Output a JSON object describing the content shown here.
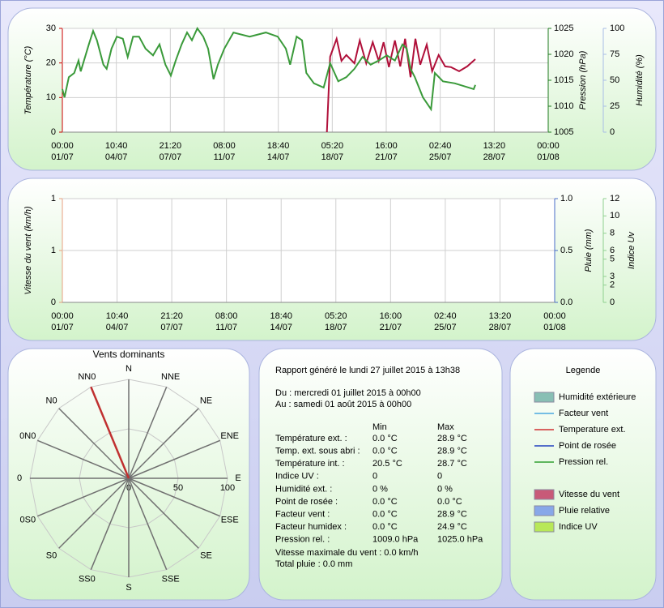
{
  "chart_data": [
    {
      "type": "line",
      "ylabel": "Température (°C)",
      "y2label": "Pression (hPa)",
      "y3label": "Humidité (%)",
      "xlim": [
        0,
        9
      ],
      "xticks": [
        {
          "value": 0,
          "label": "00:00\n01/07"
        },
        {
          "value": 1,
          "label": "10:40\n04/07"
        },
        {
          "value": 2,
          "label": "21:20\n07/07"
        },
        {
          "value": 3,
          "label": "08:00\n11/07"
        },
        {
          "value": 4,
          "label": "18:40\n14/07"
        },
        {
          "value": 5,
          "label": "05:20\n18/07"
        },
        {
          "value": 6,
          "label": "16:00\n21/07"
        },
        {
          "value": 7,
          "label": "02:40\n25/07"
        },
        {
          "value": 8,
          "label": "13:20\n28/07"
        },
        {
          "value": 9,
          "label": "00:00\n01/08"
        }
      ],
      "ylim": [
        0,
        30
      ],
      "yticks": [
        0,
        10,
        20,
        30
      ],
      "ycolor": "#cc0000",
      "y2lim": [
        1005,
        1025
      ],
      "y2ticks": [
        1005,
        1010,
        1015,
        1020,
        1025
      ],
      "y2color": "#1f7a1f",
      "y3lim": [
        0,
        100
      ],
      "y3ticks": [
        0,
        25,
        50,
        75,
        100
      ],
      "y3color": "#a8bde6",
      "grid": true,
      "series": [
        {
          "color": "#b0103a",
          "axis": "y",
          "x": [
            4.9,
            4.96,
            5.08,
            5.17,
            5.26,
            5.41,
            5.51,
            5.63,
            5.75,
            5.86,
            5.95,
            6.05,
            6.16,
            6.26,
            6.35,
            6.45,
            6.54,
            6.63,
            6.75,
            6.85,
            6.97,
            7.09,
            7.2,
            7.35,
            7.5,
            7.65
          ],
          "values": [
            0,
            21.8,
            27,
            20.6,
            22.3,
            19.9,
            26.5,
            19.9,
            26,
            20.6,
            26,
            18.8,
            26.5,
            19,
            27,
            15.9,
            27,
            19.5,
            25.3,
            17.6,
            22.3,
            19,
            18.8,
            17.6,
            19,
            21.1
          ]
        },
        {
          "color": "#3a9a3a",
          "axis": "y2",
          "x": [
            0,
            0.04,
            0.12,
            0.22,
            0.3,
            0.34,
            0.49,
            0.57,
            0.64,
            0.76,
            0.82,
            0.91,
            1.01,
            1.12,
            1.21,
            1.31,
            1.42,
            1.54,
            1.68,
            1.8,
            1.91,
            2.01,
            2.1,
            2.21,
            2.31,
            2.4,
            2.5,
            2.61,
            2.7,
            2.8,
            2.88,
            3.0,
            3.17,
            3.47,
            3.77,
            3.99,
            4.14,
            4.22,
            4.34,
            4.44,
            4.52,
            4.66,
            4.84,
            4.96,
            5.11,
            5.26,
            5.41,
            5.56,
            5.71,
            5.86,
            6.01,
            6.16,
            6.3,
            6.38,
            6.45,
            6.53,
            6.68,
            6.83,
            6.9,
            7.05,
            7.27,
            7.62,
            7.65
          ],
          "values": [
            1013.3,
            1011.7,
            1015.6,
            1016.4,
            1018.8,
            1016.7,
            1021.9,
            1024.5,
            1022.7,
            1018.0,
            1017.2,
            1021.1,
            1023.4,
            1023.0,
            1019.5,
            1023.4,
            1023.4,
            1021.1,
            1019.8,
            1021.9,
            1018.0,
            1015.9,
            1018.8,
            1021.9,
            1024.2,
            1022.7,
            1025.0,
            1023.4,
            1021.1,
            1015.2,
            1018.0,
            1021.1,
            1024.2,
            1023.4,
            1024.2,
            1023.4,
            1021.1,
            1018.0,
            1023.4,
            1022.7,
            1016.4,
            1014.4,
            1013.6,
            1018.3,
            1014.8,
            1015.6,
            1017.2,
            1019.5,
            1018.0,
            1018.8,
            1019.8,
            1018.8,
            1021.9,
            1021.1,
            1017.2,
            1015.6,
            1011.7,
            1009.4,
            1016.4,
            1014.8,
            1014.4,
            1013.3,
            1014.1
          ]
        }
      ]
    },
    {
      "type": "line",
      "ylabel": "Vitesse du vent (km/h)",
      "y2label": "Pluie (mm)",
      "y3label": "Indice Uv",
      "xlim": [
        0,
        9
      ],
      "xticks": [
        {
          "value": 0,
          "label": "00:00\n01/07"
        },
        {
          "value": 1,
          "label": "10:40\n04/07"
        },
        {
          "value": 2,
          "label": "21:20\n07/07"
        },
        {
          "value": 3,
          "label": "08:00\n11/07"
        },
        {
          "value": 4,
          "label": "18:40\n14/07"
        },
        {
          "value": 5,
          "label": "05:20\n18/07"
        },
        {
          "value": 6,
          "label": "16:00\n21/07"
        },
        {
          "value": 7,
          "label": "02:40\n25/07"
        },
        {
          "value": 8,
          "label": "13:20\n28/07"
        },
        {
          "value": 9,
          "label": "00:00\n01/08"
        }
      ],
      "ylim": [
        0,
        1
      ],
      "yticks": [
        0,
        {
          "value": 0.5,
          "label": "1"
        },
        1
      ],
      "ycolor": "#e8a080",
      "y2lim": [
        0,
        1
      ],
      "y2ticks": [
        {
          "value": 0,
          "label": "0.0"
        },
        {
          "value": 0.5,
          "label": "0.5"
        },
        {
          "value": 1,
          "label": "1.0"
        }
      ],
      "y2color": "#4a6cc8",
      "y3lim": [
        0,
        12
      ],
      "y3ticks": [
        0,
        2,
        3,
        5,
        6,
        8,
        10,
        12
      ],
      "y3color": "#8fd08f",
      "grid": true,
      "series": []
    },
    {
      "type": "radar",
      "title": "Vents dominants",
      "categories": [
        "N",
        "NNE",
        "NE",
        "ENE",
        "E",
        "ESE",
        "SE",
        "SSE",
        "S",
        "SS0",
        "S0",
        "0S0",
        "0",
        "0N0",
        "N0",
        "NN0"
      ],
      "values": [
        0,
        0,
        0,
        0,
        0,
        0,
        0,
        0,
        0,
        0,
        0,
        0,
        0,
        0,
        0,
        100
      ],
      "color": "#c03030",
      "rlim": [
        0,
        100
      ],
      "rticks": [
        0,
        50,
        100
      ]
    }
  ],
  "report": {
    "generated": "Rapport généré le lundi 27 juillet 2015 à 13h38",
    "from": "Du : mercredi 01 juillet 2015 à 00h00",
    "to": "Au : samedi 01 août 2015 à 00h00",
    "columns": [
      "Min",
      "Max"
    ],
    "rows": [
      [
        "Température ext. :",
        "0.0 °C",
        "28.9 °C"
      ],
      [
        "Temp. ext. sous abri :",
        "0.0 °C",
        "28.9 °C"
      ],
      [
        "Température int. :",
        "20.5 °C",
        "28.7 °C"
      ],
      [
        "Indice UV :",
        "0",
        "0"
      ],
      [
        "Humidité ext. :",
        "0 %",
        "0 %"
      ],
      [
        "Point de rosée :",
        "0.0 °C",
        "0.0 °C"
      ],
      [
        "Facteur vent :",
        "0.0 °C",
        "28.9 °C"
      ],
      [
        "Facteur humidex :",
        "0.0 °C",
        "24.9 °C"
      ],
      [
        "Pression rel. :",
        "1009.0 hPa",
        "1025.0 hPa"
      ]
    ],
    "max_wind": "Vitesse maximale du vent : 0.0 km/h",
    "total_rain": "Total pluie : 0.0 mm"
  },
  "legend": {
    "title": "Legende",
    "groups": [
      {
        "items": [
          {
            "name": "Humidité extérieure",
            "kind": "box",
            "color": "#88bfb4"
          },
          {
            "name": "Facteur vent",
            "kind": "line",
            "color": "#4aa8e0"
          },
          {
            "name": "Temperature ext.",
            "kind": "line",
            "color": "#d03030"
          },
          {
            "name": "Point de rosée",
            "kind": "line",
            "color": "#2040c0"
          },
          {
            "name": "Pression rel.",
            "kind": "line",
            "color": "#30a030"
          }
        ]
      },
      {
        "items": [
          {
            "name": "Vitesse du vent",
            "kind": "box",
            "color": "#c85a78"
          },
          {
            "name": "Pluie relative",
            "kind": "box",
            "color": "#88a8e8"
          },
          {
            "name": "Indice UV",
            "kind": "box",
            "color": "#b8e858"
          }
        ]
      }
    ]
  }
}
